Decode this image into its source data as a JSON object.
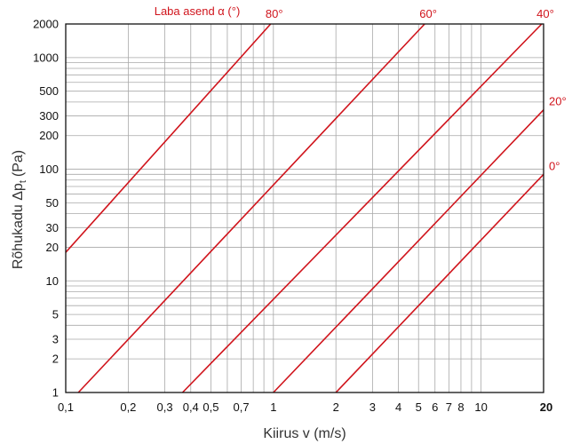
{
  "chart_data": {
    "type": "line",
    "x_scale": "log",
    "y_scale": "log",
    "xlim": [
      0.1,
      20
    ],
    "ylim": [
      1,
      2000
    ],
    "grid": true,
    "xlabel": "Kiirus v (m/s)",
    "ylabel": "Rõhukadu Δp",
    "ylabel_sub": "t",
    "ylabel_unit": "(Pa)",
    "legend_title": "Laba asend α (°)",
    "x_ticks": [
      {
        "value": 0.1,
        "label": "0,1"
      },
      {
        "value": 0.2,
        "label": "0,2"
      },
      {
        "value": 0.3,
        "label": "0,3"
      },
      {
        "value": 0.4,
        "label": "0,4"
      },
      {
        "value": 0.5,
        "label": "0,5"
      },
      {
        "value": 0.7,
        "label": "0,7"
      },
      {
        "value": 1,
        "label": "1"
      },
      {
        "value": 2,
        "label": "2"
      },
      {
        "value": 3,
        "label": "3"
      },
      {
        "value": 4,
        "label": "4"
      },
      {
        "value": 5,
        "label": "5"
      },
      {
        "value": 6,
        "label": "6"
      },
      {
        "value": 7,
        "label": "7"
      },
      {
        "value": 8,
        "label": "8"
      },
      {
        "value": 10,
        "label": "10"
      },
      {
        "value": 20,
        "label": "20"
      }
    ],
    "y_ticks": [
      {
        "value": 1,
        "label": "1"
      },
      {
        "value": 2,
        "label": "2"
      },
      {
        "value": 3,
        "label": "3"
      },
      {
        "value": 5,
        "label": "5"
      },
      {
        "value": 10,
        "label": "10"
      },
      {
        "value": 20,
        "label": "20"
      },
      {
        "value": 30,
        "label": "30"
      },
      {
        "value": 50,
        "label": "50"
      },
      {
        "value": 100,
        "label": "100"
      },
      {
        "value": 200,
        "label": "200"
      },
      {
        "value": 300,
        "label": "300"
      },
      {
        "value": 500,
        "label": "500"
      },
      {
        "value": 1000,
        "label": "1000"
      },
      {
        "value": 2000,
        "label": "2000"
      }
    ],
    "series": [
      {
        "name": "80°",
        "x": [
          0.1,
          0.97
        ],
        "y": [
          18,
          2000
        ]
      },
      {
        "name": "60°",
        "x": [
          0.115,
          5.35
        ],
        "y": [
          1,
          2000
        ]
      },
      {
        "name": "40°",
        "x": [
          0.365,
          19.6
        ],
        "y": [
          1,
          2000
        ]
      },
      {
        "name": "20°",
        "x": [
          1.0,
          20
        ],
        "y": [
          1,
          340
        ]
      },
      {
        "name": "0°",
        "x": [
          2.0,
          20
        ],
        "y": [
          1,
          90
        ]
      }
    ],
    "line_color": "#d0141c",
    "grid_color": "#a8a8a8"
  }
}
